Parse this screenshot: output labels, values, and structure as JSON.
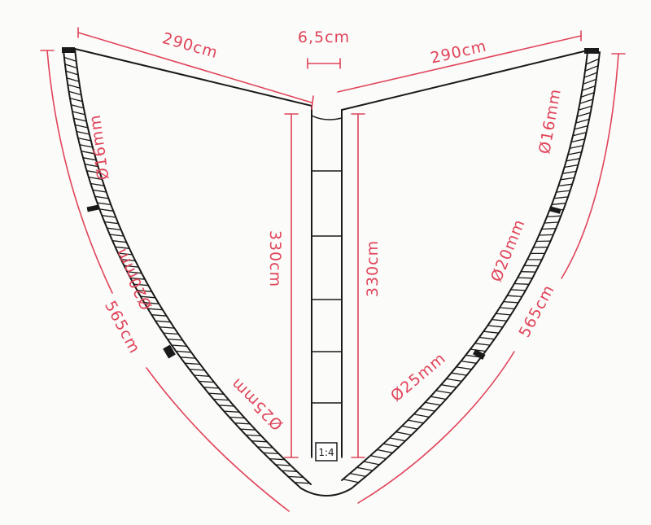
{
  "dimensions": {
    "left_top_edge": "290cm",
    "gap": "6,5cm",
    "right_top_edge": "290cm",
    "left_height": "330cm",
    "right_height": "330cm",
    "left_curve": "565cm",
    "right_curve": "565cm"
  },
  "diameters": {
    "left_upper": "Ø16mm",
    "left_middle": "Ø20mm",
    "left_lower": "Ø25mm",
    "right_upper": "Ø16mm",
    "right_middle": "Ø20mm",
    "right_lower": "Ø25mm"
  },
  "scale": "1:4",
  "colors": {
    "ink": "#1a1a1a",
    "dimension": "#e0445a",
    "paper": "#fbfbf9"
  }
}
